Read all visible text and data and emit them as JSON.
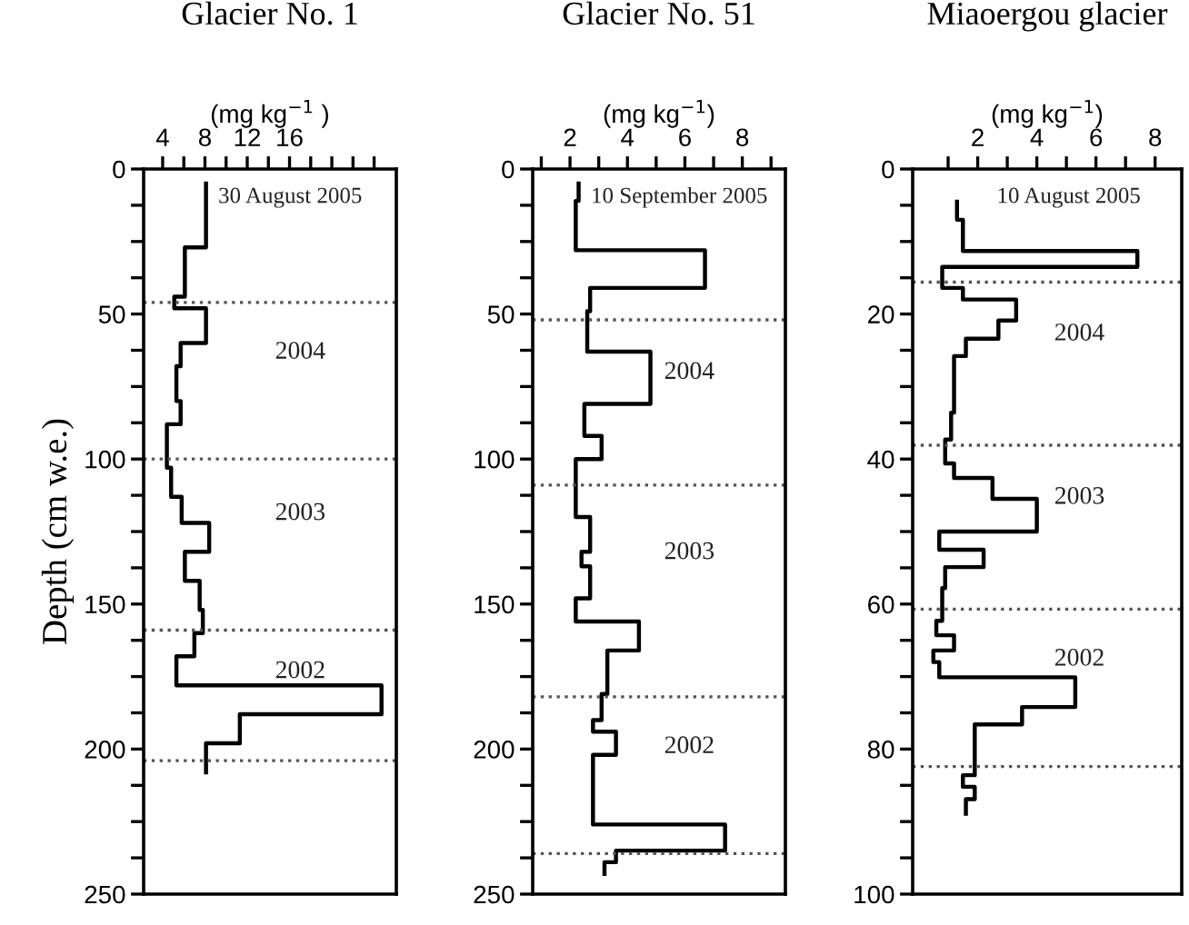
{
  "chart_data": [
    {
      "type": "line",
      "title": "Glacier No. 1",
      "xlabel": "(mg kg$^{−1}$ )",
      "ylabel": "Depth (cm w.e.)",
      "xlim": [
        2.2,
        26.1
      ],
      "ylim": [
        250,
        0
      ],
      "xticks": [
        4,
        {
          "value": 6,
          "label": null
        },
        8,
        {
          "value": 10,
          "label": null
        },
        12,
        {
          "value": 14,
          "label": null
        },
        16,
        {
          "value": 18,
          "label": null
        },
        {
          "value": 20,
          "label": null
        },
        {
          "value": 22,
          "label": null
        },
        {
          "value": 24,
          "label": null
        }
      ],
      "yticks": [
        0,
        {
          "value": 12.5,
          "label": null
        },
        {
          "value": 25,
          "label": null
        },
        {
          "value": 37.5,
          "label": null
        },
        50,
        {
          "value": 62.5,
          "label": null
        },
        {
          "value": 75,
          "label": null
        },
        {
          "value": 87.5,
          "label": null
        },
        100,
        {
          "value": 112.5,
          "label": null
        },
        {
          "value": 125,
          "label": null
        },
        {
          "value": 137.5,
          "label": null
        },
        150,
        {
          "value": 162.5,
          "label": null
        },
        {
          "value": 175,
          "label": null
        },
        {
          "value": 187.5,
          "label": null
        },
        200,
        {
          "value": 212.5,
          "label": null
        },
        {
          "value": 225,
          "label": null
        },
        {
          "value": 237.5,
          "label": null
        },
        250
      ],
      "grid": false,
      "legend": false,
      "line_style": "solid",
      "marker": "none",
      "series": [
        {
          "color": "#000000",
          "x": [
            8.1,
            8.1,
            6.1,
            6.1,
            5.1,
            5.1,
            8.1,
            8.1,
            5.7,
            5.7,
            5.3,
            5.3,
            5.7,
            5.7,
            4.4,
            4.4,
            4.8,
            4.8,
            5.8,
            5.8,
            8.4,
            8.4,
            6.1,
            6.1,
            7.5,
            7.5,
            7.8,
            7.8,
            7.0,
            7.0,
            5.3,
            5.3,
            24.7,
            24.7,
            11.3,
            11.3,
            8.1,
            8.1
          ],
          "values": [
            5,
            27,
            27,
            44,
            44,
            48,
            48,
            60,
            60,
            68,
            68,
            80,
            80,
            88,
            88,
            103,
            103,
            113,
            113,
            122,
            122,
            132,
            132,
            142,
            142,
            152,
            152,
            160,
            160,
            168,
            168,
            178,
            178,
            188,
            188,
            198,
            198,
            208
          ]
        }
      ],
      "ref_lines": [
        {
          "axis": "y",
          "value": 46,
          "color": "#555555",
          "line_style": "dotted"
        },
        {
          "axis": "y",
          "value": 100,
          "color": "#555555",
          "line_style": "dotted"
        },
        {
          "axis": "y",
          "value": 159,
          "color": "#555555",
          "line_style": "dotted"
        },
        {
          "axis": "y",
          "value": 204,
          "color": "#555555",
          "line_style": "dotted"
        }
      ],
      "annotations": [
        "30 August 2005",
        "2004",
        "2003",
        "2002"
      ]
    },
    {
      "type": "line",
      "title": "Glacier No. 51",
      "xlabel": "(mg kg$^{−1}$)",
      "xlim": [
        0.7,
        9.5
      ],
      "ylim": [
        250,
        0
      ],
      "xticks": [
        {
          "value": 1,
          "label": null
        },
        2,
        {
          "value": 3,
          "label": null
        },
        4,
        {
          "value": 5,
          "label": null
        },
        6,
        {
          "value": 7,
          "label": null
        },
        8,
        {
          "value": 9,
          "label": null
        }
      ],
      "yticks": [
        0,
        {
          "value": 12.5,
          "label": null
        },
        {
          "value": 25,
          "label": null
        },
        {
          "value": 37.5,
          "label": null
        },
        50,
        {
          "value": 62.5,
          "label": null
        },
        {
          "value": 75,
          "label": null
        },
        {
          "value": 87.5,
          "label": null
        },
        100,
        {
          "value": 112.5,
          "label": null
        },
        {
          "value": 125,
          "label": null
        },
        {
          "value": 137.5,
          "label": null
        },
        150,
        {
          "value": 162.5,
          "label": null
        },
        {
          "value": 175,
          "label": null
        },
        {
          "value": 187.5,
          "label": null
        },
        200,
        {
          "value": 212.5,
          "label": null
        },
        {
          "value": 225,
          "label": null
        },
        {
          "value": 237.5,
          "label": null
        },
        250
      ],
      "grid": false,
      "legend": false,
      "line_style": "solid",
      "marker": "none",
      "series": [
        {
          "color": "#000000",
          "x": [
            2.3,
            2.3,
            2.2,
            2.2,
            6.7,
            6.7,
            2.7,
            2.7,
            2.6,
            2.6,
            4.8,
            4.8,
            2.5,
            2.5,
            3.1,
            3.1,
            2.2,
            2.2,
            2.7,
            2.7,
            2.4,
            2.4,
            2.7,
            2.7,
            2.2,
            2.2,
            4.4,
            4.4,
            3.3,
            3.3,
            3.1,
            3.1,
            2.8,
            2.8,
            3.6,
            3.6,
            2.8,
            2.8,
            7.4,
            7.4,
            3.6,
            3.6,
            3.2,
            3.2
          ],
          "values": [
            5,
            11,
            11,
            28,
            28,
            41,
            41,
            49,
            49,
            63,
            63,
            81,
            81,
            92,
            92,
            100,
            100,
            120,
            120,
            132,
            132,
            137,
            137,
            148,
            148,
            156,
            156,
            166,
            166,
            181,
            181,
            190,
            190,
            194,
            194,
            202,
            202,
            226,
            226,
            235,
            235,
            239,
            239,
            243
          ]
        }
      ],
      "ref_lines": [
        {
          "axis": "y",
          "value": 52,
          "color": "#555555",
          "line_style": "dotted"
        },
        {
          "axis": "y",
          "value": 109,
          "color": "#555555",
          "line_style": "dotted"
        },
        {
          "axis": "y",
          "value": 182,
          "color": "#555555",
          "line_style": "dotted"
        },
        {
          "axis": "y",
          "value": 236,
          "color": "#555555",
          "line_style": "dotted"
        }
      ],
      "annotations": [
        "10 September 2005",
        "2004",
        "2003",
        "2002"
      ]
    },
    {
      "type": "line",
      "title": "Miaoergou glacier",
      "xlabel": "(mg kg$^{−1}$)",
      "xlim": [
        -0.2,
        8.9
      ],
      "ylim": [
        100,
        0
      ],
      "xticks": [
        {
          "value": 1,
          "label": null
        },
        2,
        {
          "value": 3,
          "label": null
        },
        4,
        {
          "value": 5,
          "label": null
        },
        6,
        {
          "value": 7,
          "label": null
        },
        8
      ],
      "yticks": [
        0,
        {
          "value": 5,
          "label": null
        },
        {
          "value": 10,
          "label": null
        },
        {
          "value": 15,
          "label": null
        },
        20,
        {
          "value": 25,
          "label": null
        },
        {
          "value": 30,
          "label": null
        },
        {
          "value": 35,
          "label": null
        },
        40,
        {
          "value": 45,
          "label": null
        },
        {
          "value": 50,
          "label": null
        },
        {
          "value": 55,
          "label": null
        },
        60,
        {
          "value": 65,
          "label": null
        },
        {
          "value": 70,
          "label": null
        },
        {
          "value": 75,
          "label": null
        },
        80,
        {
          "value": 85,
          "label": null
        },
        {
          "value": 90,
          "label": null
        },
        {
          "value": 95,
          "label": null
        },
        100
      ],
      "grid": false,
      "legend": false,
      "line_style": "solid",
      "marker": "none",
      "series": [
        {
          "color": "#000000",
          "x": [
            1.3,
            1.3,
            1.5,
            1.5,
            7.4,
            7.4,
            0.8,
            0.8,
            1.5,
            1.5,
            3.3,
            3.3,
            2.7,
            2.7,
            1.6,
            1.6,
            1.2,
            1.2,
            1.1,
            1.1,
            0.9,
            0.9,
            1.2,
            1.2,
            2.5,
            2.5,
            4.0,
            4.0,
            0.7,
            0.7,
            2.2,
            2.2,
            0.9,
            0.9,
            0.8,
            0.8,
            0.6,
            0.6,
            1.2,
            1.2,
            0.5,
            0.5,
            0.7,
            0.7,
            5.3,
            5.3,
            3.5,
            3.5,
            1.9,
            1.9,
            1.5,
            1.5,
            1.9,
            1.9,
            1.6,
            1.6
          ],
          "values": [
            4.5,
            7,
            7,
            11.3,
            11.3,
            13.5,
            13.5,
            16.4,
            16.4,
            18,
            18,
            20.9,
            20.9,
            23.4,
            23.4,
            25.8,
            25.8,
            33.6,
            33.6,
            37.3,
            37.3,
            40.6,
            40.6,
            42.6,
            42.6,
            45.5,
            45.5,
            50,
            50,
            52.5,
            52.5,
            54.9,
            54.9,
            57.8,
            57.8,
            62.3,
            62.3,
            64.3,
            64.3,
            66.4,
            66.4,
            68,
            68,
            70.1,
            70.1,
            74.2,
            74.2,
            76.6,
            76.6,
            83.6,
            83.6,
            85.2,
            85.2,
            86.9,
            86.9,
            88.9
          ]
        }
      ],
      "ref_lines": [
        {
          "axis": "y",
          "value": 15.6,
          "color": "#555555",
          "line_style": "dotted"
        },
        {
          "axis": "y",
          "value": 38.1,
          "color": "#555555",
          "line_style": "dotted"
        },
        {
          "axis": "y",
          "value": 60.7,
          "color": "#555555",
          "line_style": "dotted"
        },
        {
          "axis": "y",
          "value": 82.4,
          "color": "#555555",
          "line_style": "dotted"
        }
      ],
      "annotations": [
        "10 August 2005",
        "2004",
        "2003",
        "2002"
      ]
    }
  ]
}
